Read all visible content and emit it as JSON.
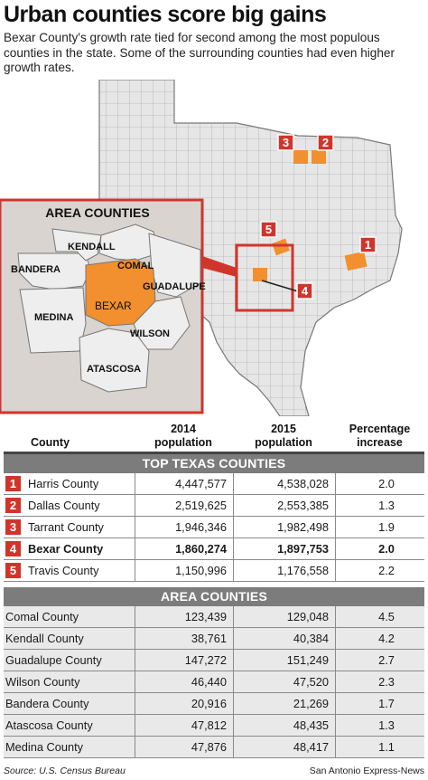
{
  "title": "Urban counties score big gains",
  "subtitle": "Bexar County's growth rate tied for second among the most populous counties in the state. Some of the surrounding counties had even higher growth rates.",
  "map": {
    "inset_title": "AREA COUNTIES",
    "inset_labels": [
      "KENDALL",
      "COMAL",
      "BANDERA",
      "GUADALUPE",
      "BEXAR",
      "MEDINA",
      "WILSON",
      "ATASCOSA"
    ],
    "markers": [
      "1",
      "2",
      "3",
      "4",
      "5"
    ],
    "colors": {
      "highlight": "#f28f2e",
      "land": "#e6e6e6",
      "water": "#ffffff",
      "marker": "#d0352c",
      "inset_bg": "#d9d4cf"
    }
  },
  "table": {
    "headers": {
      "county": "County",
      "y2014": [
        "2014",
        "population"
      ],
      "y2015": [
        "2015",
        "population"
      ],
      "pct": [
        "Percentage",
        "increase"
      ]
    },
    "top_section": "TOP TEXAS COUNTIES",
    "top_rows": [
      {
        "rank": "1",
        "name": "Harris County",
        "p2014": "4,447,577",
        "p2015": "4,538,028",
        "pct": "2.0"
      },
      {
        "rank": "2",
        "name": "Dallas County",
        "p2014": "2,519,625",
        "p2015": "2,553,385",
        "pct": "1.3"
      },
      {
        "rank": "3",
        "name": "Tarrant County",
        "p2014": "1,946,346",
        "p2015": "1,982,498",
        "pct": "1.9"
      },
      {
        "rank": "4",
        "name": "Bexar County",
        "p2014": "1,860,274",
        "p2015": "1,897,753",
        "pct": "2.0"
      },
      {
        "rank": "5",
        "name": "Travis County",
        "p2014": "1,150,996",
        "p2015": "1,176,558",
        "pct": "2.2"
      }
    ],
    "area_section": "AREA COUNTIES",
    "area_rows": [
      {
        "name": "Comal County",
        "p2014": "123,439",
        "p2015": "129,048",
        "pct": "4.5"
      },
      {
        "name": "Kendall County",
        "p2014": "38,761",
        "p2015": "40,384",
        "pct": "4.2"
      },
      {
        "name": "Guadalupe County",
        "p2014": "147,272",
        "p2015": "151,249",
        "pct": "2.7"
      },
      {
        "name": "Wilson County",
        "p2014": "46,440",
        "p2015": "47,520",
        "pct": "2.3"
      },
      {
        "name": "Bandera County",
        "p2014": "20,916",
        "p2015": "21,269",
        "pct": "1.7"
      },
      {
        "name": "Atascosa County",
        "p2014": "47,812",
        "p2015": "48,435",
        "pct": "1.3"
      },
      {
        "name": "Medina County",
        "p2014": "47,876",
        "p2015": "48,417",
        "pct": "1.1"
      }
    ]
  },
  "footer": {
    "source": "Source: U.S. Census Bureau",
    "credit": "San Antonio Express-News"
  }
}
